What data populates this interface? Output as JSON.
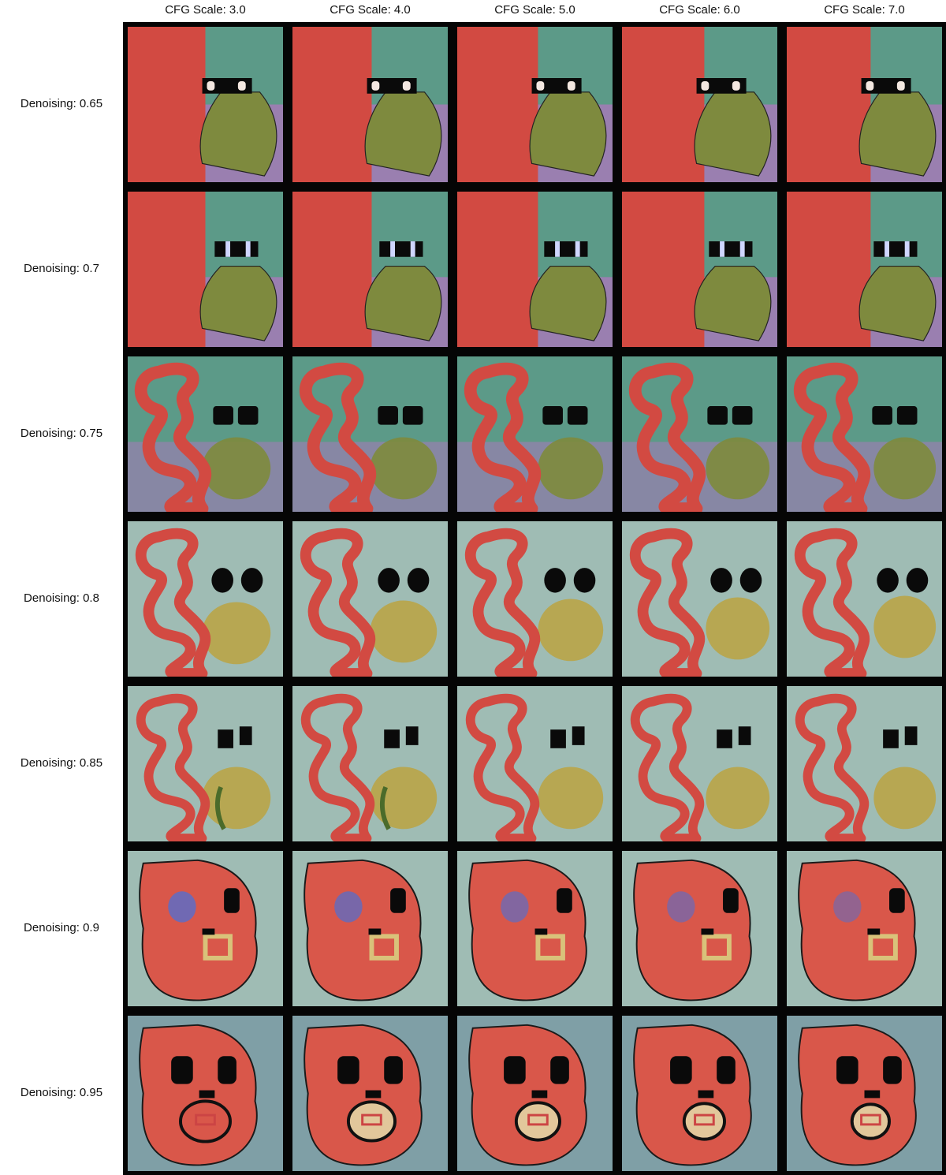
{
  "column_headers": [
    "CFG Scale: 3.0",
    "CFG Scale: 4.0",
    "CFG Scale: 5.0",
    "CFG Scale: 6.0",
    "CFG Scale: 7.0"
  ],
  "row_labels": [
    "Denoising: 0.65",
    "Denoising: 0.7",
    "Denoising: 0.75",
    "Denoising: 0.8",
    "Denoising: 0.85",
    "Denoising: 0.9",
    "Denoising: 0.95"
  ],
  "colors": {
    "grid_background": "#050505",
    "red_shape": "#d24a42",
    "coral_shape": "#d9574a",
    "teal_background": "#5c9a88",
    "pale_teal_background": "#9fbcb4",
    "slate_background": "#7f9fa6",
    "olive_blob": "#7e8a3e",
    "purple_patch": "#9a7fb0",
    "black_features": "#0a0a0a",
    "violet_eye": "#6a6ab8",
    "beige_mouth": "#e2c79b"
  }
}
